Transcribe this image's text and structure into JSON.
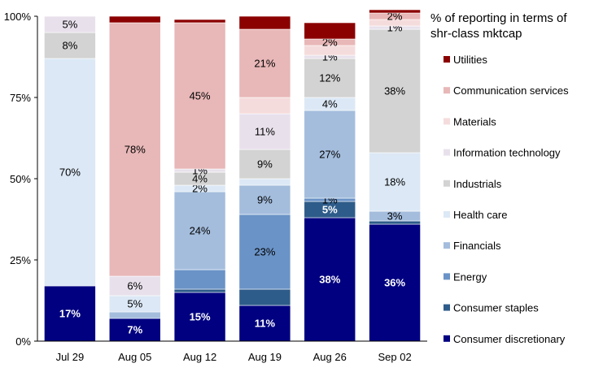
{
  "chart_data": {
    "type": "bar",
    "stacked": true,
    "legend_title": "% of reporting in terms of shr-class mktcap",
    "categories": [
      "Jul 29",
      "Aug 05",
      "Aug 12",
      "Aug 19",
      "Aug 26",
      "Sep 02"
    ],
    "y_ticks": [
      "0%",
      "25%",
      "50%",
      "75%",
      "100%"
    ],
    "ylim": [
      0,
      100
    ],
    "grid": false,
    "legend_position": "right",
    "series": [
      {
        "name": "Consumer discretionary",
        "color": "#000080",
        "values": [
          17,
          7,
          15,
          11,
          38,
          36
        ],
        "labels": [
          "17%",
          "7%",
          "15%",
          "11%",
          "38%",
          "36%"
        ]
      },
      {
        "name": "Consumer staples",
        "color": "#2E5C8A",
        "values": [
          0,
          0,
          1,
          5,
          5,
          1
        ],
        "labels": [
          "",
          "",
          "",
          "",
          "5%",
          ""
        ]
      },
      {
        "name": "Energy",
        "color": "#6A93C7",
        "values": [
          0,
          0,
          6,
          23,
          1,
          0
        ],
        "labels": [
          "",
          "",
          "",
          "23%",
          "1%",
          ""
        ]
      },
      {
        "name": "Financials",
        "color": "#A4BDDD",
        "values": [
          0,
          2,
          24,
          9,
          27,
          3
        ],
        "labels": [
          "",
          "",
          "24%",
          "9%",
          "27%",
          "3%"
        ]
      },
      {
        "name": "Health care",
        "color": "#DCE8F5",
        "values": [
          70,
          5,
          2,
          2,
          4,
          18
        ],
        "labels": [
          "70%",
          "5%",
          "2%",
          "",
          "4%",
          "18%"
        ]
      },
      {
        "name": "Industrials",
        "color": "#D3D3D3",
        "values": [
          8,
          0,
          4,
          9,
          12,
          38
        ],
        "labels": [
          "8%",
          "",
          "4%",
          "9%",
          "12%",
          "38%"
        ]
      },
      {
        "name": "Information technology",
        "color": "#E8E1EC",
        "values": [
          5,
          6,
          1,
          11,
          1,
          1
        ],
        "labels": [
          "5%",
          "6%",
          "1%",
          "11%",
          "1%",
          "1%"
        ]
      },
      {
        "name": "Materials",
        "color": "#F5DCDC",
        "values": [
          0,
          0,
          0,
          5,
          3,
          2
        ],
        "labels": [
          "",
          "",
          "",
          "",
          "",
          ""
        ]
      },
      {
        "name": "Communication services",
        "color": "#E8B7B7",
        "values": [
          0,
          78,
          45,
          21,
          2,
          2
        ],
        "labels": [
          "",
          "78%",
          "45%",
          "21%",
          "2%",
          "2%"
        ]
      },
      {
        "name": "Utilities",
        "color": "#8B0000",
        "values": [
          0,
          2,
          1,
          4,
          5,
          1
        ],
        "labels": [
          "",
          "",
          "",
          "",
          "",
          ""
        ]
      }
    ]
  }
}
